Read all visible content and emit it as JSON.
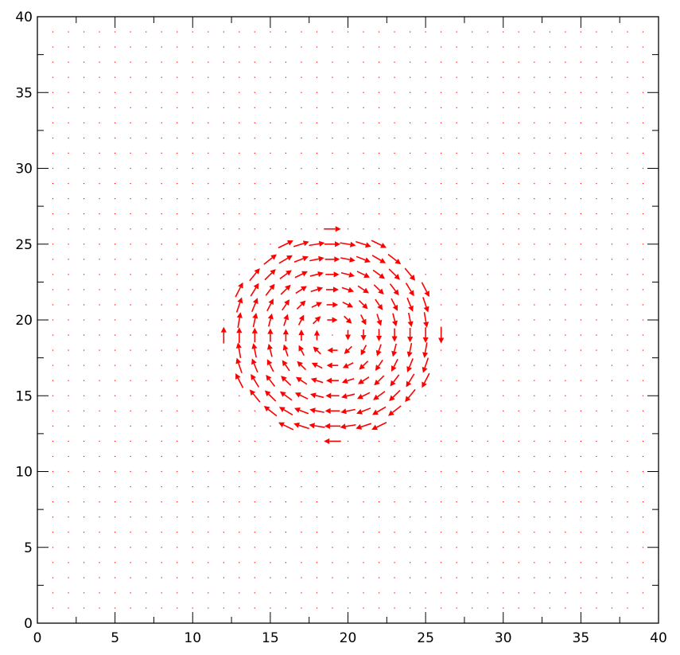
{
  "chart_data": {
    "type": "quiver",
    "title": "",
    "xlabel": "",
    "ylabel": "",
    "xlim": [
      0,
      40
    ],
    "ylim": [
      0,
      40
    ],
    "x_ticks": [
      "0",
      "5",
      "10",
      "15",
      "20",
      "25",
      "30",
      "35",
      "40"
    ],
    "y_ticks": [
      "0",
      "5",
      "10",
      "15",
      "20",
      "25",
      "30",
      "35",
      "40"
    ],
    "grid": false,
    "arrow_color": "#ff0000",
    "grid_spacing": 1,
    "vortex": {
      "center": [
        19.0,
        19.0
      ],
      "radius": 7.0,
      "rotation": "clockwise",
      "max_arrow_length": 1.1
    }
  }
}
